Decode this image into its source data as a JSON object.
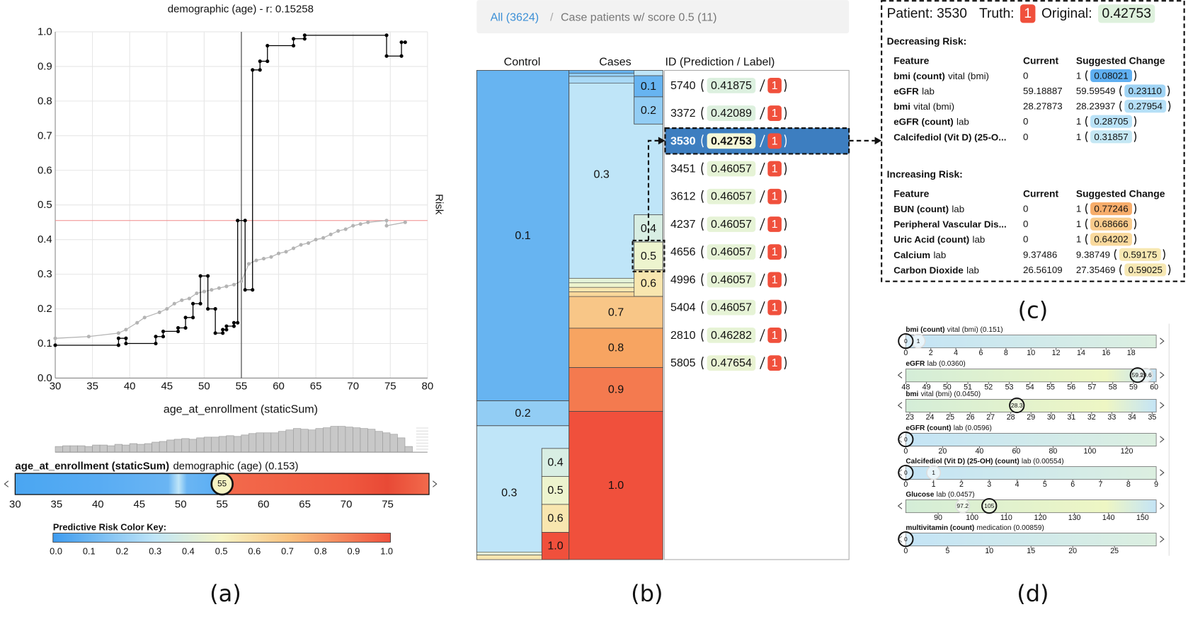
{
  "chart_data": [
    {
      "type": "line",
      "title": "demographic (age) - r: 0.15258",
      "x_label": "age_at_enrollment (staticSum)",
      "y_label": "Risk",
      "xlim": [
        30,
        80
      ],
      "ylim": [
        0,
        1
      ],
      "xticks": [
        30,
        35,
        40,
        45,
        50,
        55,
        60,
        65,
        70,
        75,
        80
      ],
      "yticks": [
        {
          "value": 0,
          "label": "0.0"
        },
        0.1,
        0.2,
        0.3,
        0.4,
        0.5,
        0.6,
        0.7,
        0.8,
        0.9,
        {
          "value": 1,
          "label": "1.0"
        }
      ],
      "grid": true,
      "reference_line": 0.455,
      "reference_color": "#f08a8a",
      "marker_x": 55,
      "series": [
        {
          "color": "#000000",
          "x": [
            30,
            38.5,
            38.5,
            39.5,
            39.5,
            43.5,
            43.5,
            44.5,
            44.5,
            46.5,
            46.5,
            47.5,
            47.5,
            48.5,
            48.5,
            49.5,
            49.5,
            50.5,
            50.5,
            51.5,
            51.5,
            52.5,
            52.5,
            53,
            53,
            54,
            54,
            54.5,
            54.5,
            55.5,
            55.5,
            56.5,
            56.5,
            57.5,
            57.5,
            58.5,
            58.5,
            62,
            62,
            63.5,
            63.5,
            74.5,
            74.5,
            76.5,
            76.5,
            77
          ],
          "values": [
            0.095,
            0.095,
            0.115,
            0.115,
            0.1,
            0.1,
            0.12,
            0.12,
            0.135,
            0.135,
            0.145,
            0.145,
            0.175,
            0.175,
            0.215,
            0.215,
            0.295,
            0.295,
            0.2,
            0.2,
            0.13,
            0.13,
            0.14,
            0.14,
            0.15,
            0.15,
            0.16,
            0.16,
            0.455,
            0.455,
            0.255,
            0.255,
            0.89,
            0.89,
            0.915,
            0.915,
            0.96,
            0.96,
            0.98,
            0.98,
            0.99,
            0.99,
            0.93,
            0.93,
            0.97,
            0.97
          ]
        },
        {
          "color": "#b4b4b4",
          "x": [
            30,
            34.5,
            38.5,
            39.5,
            41,
            42,
            44,
            45,
            46,
            47,
            48,
            49,
            50,
            51,
            52,
            53,
            54,
            55,
            56,
            57,
            58,
            59,
            60,
            61,
            62,
            63,
            64,
            65,
            66,
            67,
            68,
            69,
            70,
            71,
            72,
            74.5,
            74.5,
            77
          ],
          "values": [
            0.115,
            0.12,
            0.13,
            0.14,
            0.16,
            0.175,
            0.19,
            0.2,
            0.215,
            0.225,
            0.23,
            0.245,
            0.25,
            0.255,
            0.26,
            0.265,
            0.27,
            0.28,
            0.33,
            0.34,
            0.345,
            0.35,
            0.36,
            0.365,
            0.375,
            0.385,
            0.39,
            0.4,
            0.405,
            0.415,
            0.425,
            0.43,
            0.44,
            0.445,
            0.45,
            0.455,
            0.44,
            0.45
          ]
        }
      ]
    },
    {
      "type": "histogram",
      "color": "#c8c8c8",
      "xlim": [
        30,
        78
      ],
      "ylim": [
        0,
        40
      ],
      "bins": [
        30,
        31,
        32,
        33,
        34,
        35,
        36,
        37,
        38,
        39,
        40,
        41,
        42,
        43,
        44,
        45,
        46,
        47,
        48,
        49,
        50,
        51,
        52,
        53,
        54,
        55,
        56,
        57,
        58,
        59,
        60,
        61,
        62,
        63,
        64,
        65,
        66,
        67,
        68,
        69,
        70,
        71,
        72,
        73,
        74,
        75,
        76,
        77,
        78
      ],
      "values": [
        8,
        9,
        9,
        9,
        8,
        10,
        10,
        9,
        11,
        10,
        12,
        11,
        12,
        14,
        15,
        17,
        18,
        19,
        18,
        20,
        21,
        21,
        22,
        23,
        22,
        24,
        26,
        27,
        27,
        27,
        29,
        31,
        33,
        32,
        31,
        33,
        34,
        36,
        36,
        35,
        34,
        33,
        32,
        29,
        27,
        25,
        20,
        8
      ]
    }
  ],
  "controls": {
    "age_slider": {
      "label": "age_at_enrollment (staticSum)",
      "source": "demographic (age) (0.153)",
      "xlim": [
        30,
        80
      ],
      "ticks": [
        30,
        35,
        40,
        45,
        50,
        55,
        60,
        65,
        70,
        75
      ],
      "value": 55
    },
    "color_key": {
      "title": "Predictive Risk Color Key:",
      "xlim": [
        0,
        1
      ],
      "ticks": [
        {
          "value": 0,
          "label": "0.0"
        },
        0.1,
        0.2,
        0.3,
        0.4,
        0.5,
        0.6,
        0.7,
        0.8,
        0.9,
        {
          "value": 1,
          "label": "1.0"
        }
      ]
    }
  },
  "cohort": {
    "breadcrumb": {
      "root": "All (3624)",
      "separator": "/",
      "current": "Case patients w/ score 0.5 (11)"
    },
    "headers": [
      "Control",
      "Cases",
      "ID (Prediction / Label)"
    ],
    "control_blocks": [
      "0.1",
      "0.2",
      "0.3",
      "0.4",
      "0.5",
      "0.6",
      "1.0"
    ],
    "case_blocks": [
      "0.3",
      "0.1",
      "0.2",
      "0.4",
      "0.5",
      "0.6",
      "0.7",
      "0.8",
      "0.9",
      "1.0"
    ],
    "selected": 2,
    "patients": [
      {
        "id": "5740",
        "prediction": "0.41875",
        "label": "1"
      },
      {
        "id": "3372",
        "prediction": "0.42089",
        "label": "1"
      },
      {
        "id": "3530",
        "prediction": "0.42753",
        "label": "1"
      },
      {
        "id": "3451",
        "prediction": "0.46057",
        "label": "1"
      },
      {
        "id": "3612",
        "prediction": "0.46057",
        "label": "1"
      },
      {
        "id": "4237",
        "prediction": "0.46057",
        "label": "1"
      },
      {
        "id": "4656",
        "prediction": "0.46057",
        "label": "1"
      },
      {
        "id": "4996",
        "prediction": "0.46057",
        "label": "1"
      },
      {
        "id": "5404",
        "prediction": "0.46057",
        "label": "1"
      },
      {
        "id": "2810",
        "prediction": "0.46282",
        "label": "1"
      },
      {
        "id": "5805",
        "prediction": "0.47654",
        "label": "1"
      }
    ]
  },
  "patient_detail": {
    "patient": "Patient: 3530",
    "truth_label": "Truth:",
    "truth": "1",
    "original_label": "Original:",
    "original": "0.42753",
    "decreasing": {
      "title": "Decreasing Risk:",
      "headers": [
        "Feature",
        "Current",
        "Suggested Change"
      ],
      "rows": [
        {
          "feature": "bmi (count)",
          "source": "vital (bmi)",
          "current": "0",
          "suggested": "1",
          "risk": "0.08021"
        },
        {
          "feature": "eGFR",
          "source": "lab",
          "current": "59.18887",
          "suggested": "59.59549",
          "risk": "0.23110"
        },
        {
          "feature": "bmi",
          "source": "vital (bmi)",
          "current": "28.27873",
          "suggested": "28.23937",
          "risk": "0.27954"
        },
        {
          "feature": "eGFR (count)",
          "source": "lab",
          "current": "0",
          "suggested": "1",
          "risk": "0.28705"
        },
        {
          "feature": "Calcifediol (Vit D) (25-O...",
          "current": "0",
          "suggested": "1",
          "risk": "0.31857"
        }
      ]
    },
    "increasing": {
      "title": "Increasing Risk:",
      "headers": [
        "Feature",
        "Current",
        "Suggested Change"
      ],
      "rows": [
        {
          "feature": "BUN (count)",
          "source": "lab",
          "current": "0",
          "suggested": "1",
          "risk": "0.77246"
        },
        {
          "feature": "Peripheral Vascular Dis...",
          "current": "0",
          "suggested": "1",
          "risk": "0.68666"
        },
        {
          "feature": "Uric Acid (count)",
          "source": "lab",
          "current": "0",
          "suggested": "1",
          "risk": "0.64202"
        },
        {
          "feature": "Calcium",
          "source": "lab",
          "current": "9.37486",
          "suggested": "9.38749",
          "risk": "0.59175"
        },
        {
          "feature": "Carbon Dioxide",
          "source": "lab",
          "current": "26.56109",
          "suggested": "27.35469",
          "risk": "0.59025"
        }
      ]
    }
  },
  "feature_sliders": [
    {
      "feature": "bmi (count)",
      "source": "vital (bmi) (0.151)",
      "xlim": [
        0,
        20
      ],
      "ticks": [
        0,
        2,
        4,
        6,
        8,
        10,
        12,
        14,
        16,
        18
      ],
      "current": 0,
      "suggested": 1
    },
    {
      "feature": "eGFR",
      "source": "lab (0.0360)",
      "xlim": [
        48,
        60.1
      ],
      "ticks": [
        48,
        49,
        50,
        51,
        52,
        53,
        54,
        55,
        56,
        57,
        58,
        59,
        60
      ],
      "current": 59.2,
      "suggested": 59.6
    },
    {
      "feature": "bmi",
      "source": "vital (bmi) (0.0450)",
      "xlim": [
        22.8,
        35.2
      ],
      "ticks": [
        23,
        24,
        25,
        26,
        27,
        28,
        29,
        30,
        31,
        32,
        33,
        34,
        35
      ],
      "current": 28.3
    },
    {
      "feature": "eGFR (count)",
      "source": "lab (0.0596)",
      "xlim": [
        0,
        136
      ],
      "ticks": [
        0,
        20,
        40,
        60,
        80,
        100,
        120
      ],
      "current": 0
    },
    {
      "feature": "Calcifediol (Vit D) (25-OH) (count)",
      "source": "lab (0.00554)",
      "xlim": [
        0,
        9
      ],
      "ticks": [
        0,
        1,
        2,
        3,
        4,
        5,
        6,
        7,
        8,
        9
      ],
      "current": 0,
      "suggested": 1
    },
    {
      "feature": "Glucose",
      "source": "lab (0.0457)",
      "xlim": [
        80.5,
        154
      ],
      "ticks": [
        90,
        100,
        110,
        120,
        130,
        140,
        150
      ],
      "current": 105,
      "suggested": 97.2
    },
    {
      "feature": "multivitamin (count)",
      "source": "medication (0.00859)",
      "xlim": [
        0,
        30
      ],
      "ticks": [
        0,
        5,
        10,
        15,
        20,
        25
      ],
      "current": 0
    }
  ],
  "panel_labels": [
    "(a)",
    "(b)",
    "(c)",
    "(d)"
  ]
}
